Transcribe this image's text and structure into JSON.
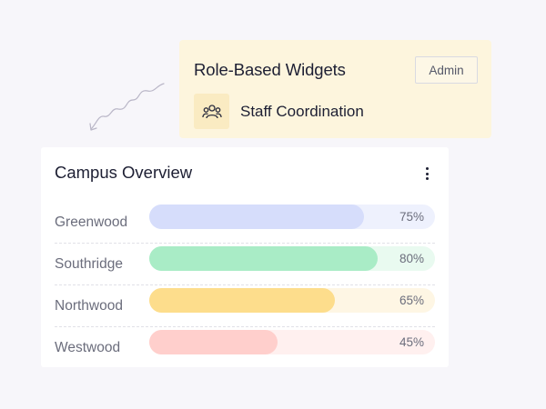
{
  "widgets_panel": {
    "title": "Role-Based Widgets",
    "role_badge": "Admin",
    "item": {
      "icon": "people-group-icon",
      "label": "Staff Coordination"
    }
  },
  "campus_overview": {
    "title": "Campus Overview",
    "menu_icon": "kebab-menu-icon",
    "campuses": [
      {
        "name": "Greenwood",
        "percent": 75,
        "percent_label": "75%",
        "fill_color": "#d6ddfb",
        "track_color": "#eef1fd"
      },
      {
        "name": "Southridge",
        "percent": 80,
        "percent_label": "80%",
        "fill_color": "#a9ecc6",
        "track_color": "#e9faf0"
      },
      {
        "name": "Northwood",
        "percent": 65,
        "percent_label": "65%",
        "fill_color": "#fddd8c",
        "track_color": "#fef6e4"
      },
      {
        "name": "Westwood",
        "percent": 45,
        "percent_label": "45%",
        "fill_color": "#ffcfcc",
        "track_color": "#fff0ef"
      }
    ]
  }
}
